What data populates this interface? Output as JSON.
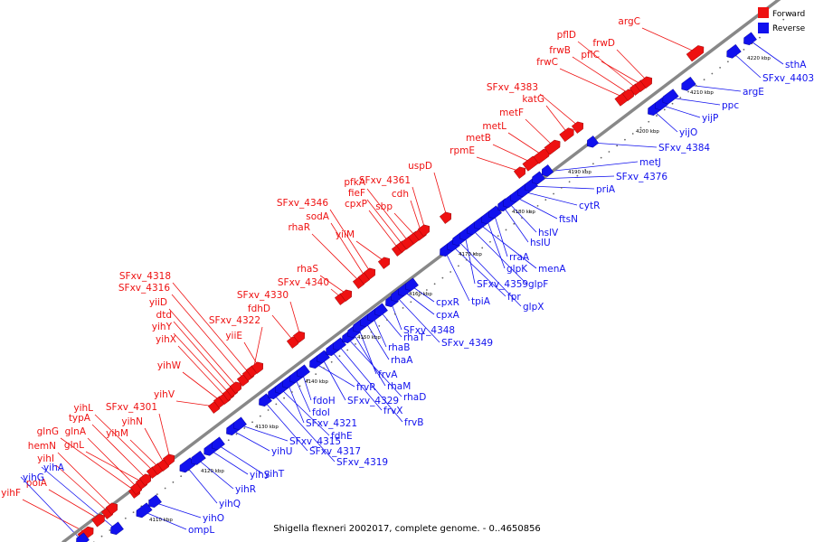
{
  "colors": {
    "forward": "#ee1111",
    "reverse": "#1111ee",
    "backbone": "#888888"
  },
  "legend": [
    {
      "name": "Forward",
      "color": "#ee1111"
    },
    {
      "name": "Reverse",
      "color": "#1111ee"
    }
  ],
  "caption": "Shigella flexneri 2002017, complete genome. - 0..4650856",
  "ticks": [
    "4110 kbp",
    "4120 kbp",
    "4130 kbp",
    "4140 kbp",
    "4150 kbp",
    "4160 kbp",
    "4170 kbp",
    "4180 kbp",
    "4190 kbp",
    "4200 kbp",
    "4210 kbp",
    "4220 kbp"
  ],
  "forward_genes": [
    "yihF",
    "polA",
    "yihI",
    "hemN",
    "glnG",
    "glnA",
    "glnL",
    "typA",
    "yihL",
    "yihM",
    "yihN",
    "SFxv_4301",
    "yihV",
    "yihW",
    "yihX",
    "yihY",
    "dtd",
    "yiiD",
    "SFxv_4316",
    "SFxv_4318",
    "SFxv_4322",
    "yiiE",
    "fdhD",
    "SFxv_4330",
    "SFxv_4340",
    "rhaS",
    "rhaR",
    "sodA",
    "SFxv_4346",
    "yiiM",
    "cpxP",
    "fieF",
    "pfkA",
    "sbp",
    "cdh",
    "SFxv_4361",
    "uspD",
    "rpmE",
    "metB",
    "metL",
    "metF",
    "katG",
    "SFxv_4383",
    "frwC",
    "frwB",
    "pflD",
    "pflC",
    "frwD",
    "argC"
  ],
  "reverse_genes": [
    "yihG",
    "yihA",
    "ompL",
    "yihO",
    "yihQ",
    "yihR",
    "yihS",
    "yihT",
    "yihU",
    "SFxv_4315",
    "SFxv_4317",
    "SFxv_4319",
    "fdhE",
    "SFxv_4321",
    "fdoI",
    "fdoH",
    "frvR",
    "SFxv_4329",
    "frvX",
    "frvB",
    "rhaD",
    "rhaM",
    "frvA",
    "rhaA",
    "rhaB",
    "rhaT",
    "SFxv_4348",
    "SFxv_4349",
    "cpxA",
    "cpxR",
    "tpiA",
    "fpr",
    "glpX",
    "SFxv_4359",
    "glpF",
    "menA",
    "glpK",
    "rraA",
    "hslU",
    "hslV",
    "ftsN",
    "cytR",
    "priA",
    "SFxv_4376",
    "metJ",
    "SFxv_4384",
    "yijO",
    "yijP",
    "ppc",
    "argE",
    "SFxv_4403",
    "sthA"
  ]
}
